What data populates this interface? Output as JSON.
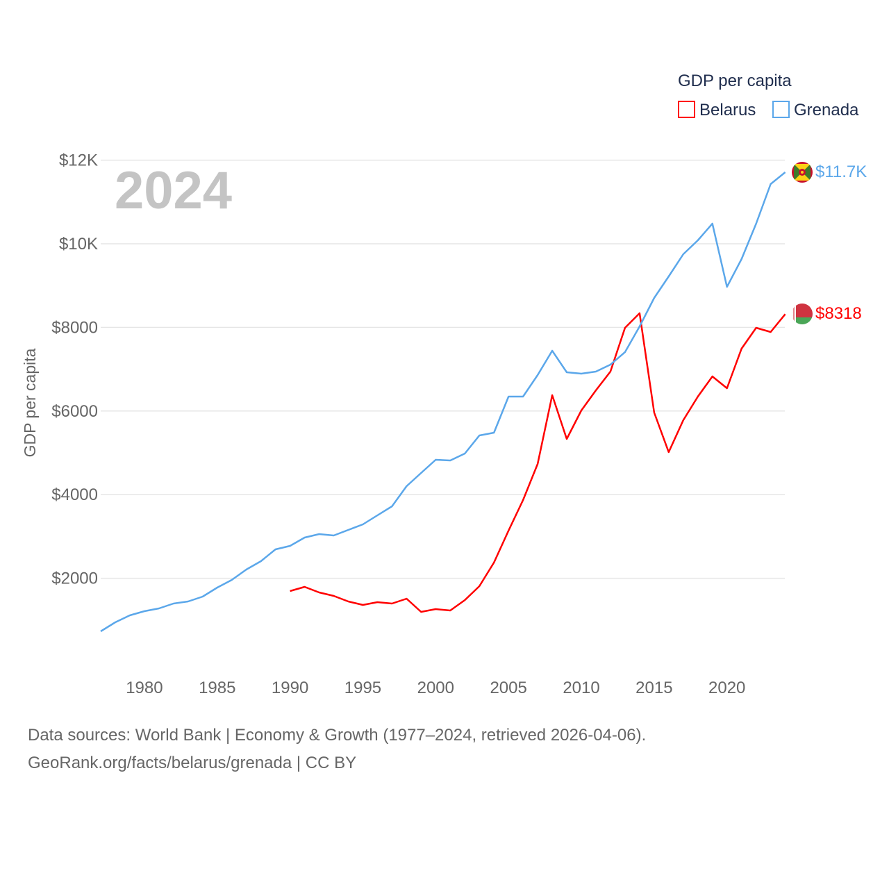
{
  "chart_data": {
    "type": "line",
    "year_label": "2024",
    "ylabel": "GDP per capita",
    "xlabel": "",
    "legend_title": "GDP per capita",
    "legend_position": "top-right",
    "xlim": [
      1977,
      2024
    ],
    "ylim": [
      0,
      12000
    ],
    "x_ticks": [
      1980,
      1985,
      1990,
      1995,
      2000,
      2005,
      2010,
      2015,
      2020
    ],
    "y_ticks": [
      {
        "value": 2000,
        "label": "$2000"
      },
      {
        "value": 4000,
        "label": "$4000"
      },
      {
        "value": 6000,
        "label": "$6000"
      },
      {
        "value": 8000,
        "label": "$8000"
      },
      {
        "value": 10000,
        "label": "$10K"
      },
      {
        "value": 12000,
        "label": "$12K"
      }
    ],
    "grid": true,
    "series": [
      {
        "name": "Belarus",
        "color": "#ff0000",
        "end_label": "$8318",
        "flag": "belarus-flag",
        "x": [
          1990,
          1991,
          1992,
          1993,
          1994,
          1995,
          1996,
          1997,
          1998,
          1999,
          2000,
          2001,
          2002,
          2003,
          2004,
          2005,
          2006,
          2007,
          2008,
          2009,
          2010,
          2011,
          2012,
          2013,
          2014,
          2015,
          2016,
          2017,
          2018,
          2019,
          2020,
          2021,
          2022,
          2023,
          2024
        ],
        "values": [
          1694,
          1794,
          1661,
          1578,
          1445,
          1362,
          1429,
          1395,
          1512,
          1196,
          1262,
          1229,
          1478,
          1811,
          2375,
          3140,
          3870,
          4734,
          6379,
          5332,
          6013,
          6495,
          6944,
          7990,
          8339,
          5963,
          5017,
          5781,
          6346,
          6827,
          6545,
          7492,
          7990,
          7890,
          8318
        ]
      },
      {
        "name": "Grenada",
        "color": "#5ba7ea",
        "end_label": "$11.7K",
        "flag": "grenada-flag",
        "x": [
          1977,
          1978,
          1979,
          1980,
          1981,
          1982,
          1983,
          1984,
          1985,
          1986,
          1987,
          1988,
          1989,
          1990,
          1991,
          1992,
          1993,
          1994,
          1995,
          1996,
          1997,
          1998,
          1999,
          2000,
          2001,
          2002,
          2003,
          2004,
          2005,
          2006,
          2007,
          2008,
          2009,
          2010,
          2011,
          2012,
          2013,
          2014,
          2015,
          2016,
          2017,
          2018,
          2019,
          2020,
          2021,
          2022,
          2023,
          2024
        ],
        "values": [
          731,
          947,
          1113,
          1213,
          1279,
          1395,
          1445,
          1561,
          1777,
          1960,
          2209,
          2409,
          2691,
          2774,
          2973,
          3056,
          3023,
          3156,
          3289,
          3505,
          3721,
          4203,
          4518,
          4834,
          4817,
          4983,
          5415,
          5482,
          6346,
          6346,
          6860,
          7442,
          6927,
          6894,
          6944,
          7110,
          7409,
          8023,
          8704,
          9219,
          9751,
          10083,
          10482,
          8970,
          9635,
          10482,
          11429,
          11711
        ]
      }
    ]
  },
  "footer": {
    "line1": "Data sources: World Bank | Economy & Growth (1977–2024, retrieved 2026-04-06).",
    "line2": "GeoRank.org/facts/belarus/grenada | CC BY"
  }
}
